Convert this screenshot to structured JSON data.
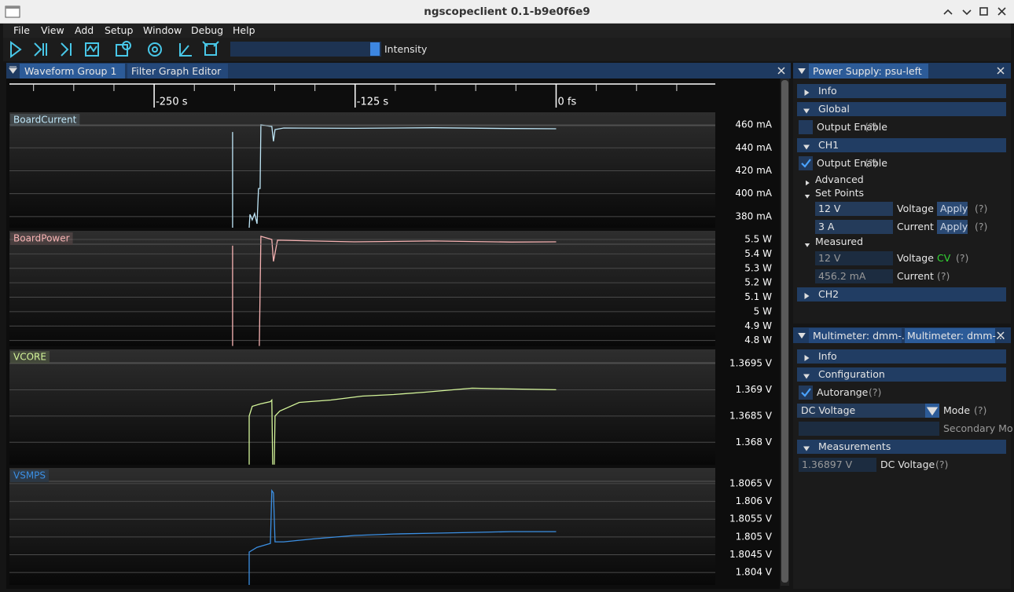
{
  "window": {
    "title": "ngscopeclient 0.1-b9e0f6e9"
  },
  "menu": [
    "File",
    "View",
    "Add",
    "Setup",
    "Window",
    "Debug",
    "Help"
  ],
  "toolbar": {
    "intensity_label": "Intensity"
  },
  "waveform_panel": {
    "tabs": [
      "Waveform Group 1",
      "Filter Graph Editor"
    ]
  },
  "chart_data": {
    "type": "line",
    "xlim": [
      -340,
      99
    ],
    "xticks": [
      {
        "value": -250,
        "label": "-250 s"
      },
      {
        "value": -125,
        "label": "-125 s"
      },
      {
        "value": 0,
        "label": "0 fs"
      }
    ],
    "grid": true,
    "series": [
      {
        "name": "BoardCurrent",
        "color": "#bfe6f7",
        "ylim": [
          370.3,
          471
        ],
        "yticks": [
          {
            "value": 460,
            "label": "460 mA"
          },
          {
            "value": 440,
            "label": "440 mA"
          },
          {
            "value": 420,
            "label": "420 mA"
          },
          {
            "value": 400,
            "label": "400 mA"
          },
          {
            "value": 380,
            "label": "380 mA"
          }
        ],
        "x": [
          -201.2,
          -201.2,
          -201.0,
          -190.9,
          -190.4,
          -189.0,
          -187.5,
          -186.0,
          -185.1,
          -184.1,
          -183.6,
          -176.8,
          -175.8,
          -174.8,
          -169.4,
          -125.5,
          -76.7,
          -27.8,
          0
        ],
        "values": [
          453.8,
          370.3,
          null,
          370.3,
          381.9,
          377.1,
          382.6,
          373.7,
          404.5,
          404.5,
          460,
          458.6,
          445.6,
          455.9,
          457.3,
          457.0,
          457.5,
          456.8,
          456.6
        ]
      },
      {
        "name": "BoardPower",
        "color": "#f7b3b3",
        "ylim": [
          4.76,
          5.56
        ],
        "yticks": [
          {
            "value": 5.5,
            "label": "5.5 W"
          },
          {
            "value": 5.4,
            "label": "5.4 W"
          },
          {
            "value": 5.3,
            "label": "5.3 W"
          },
          {
            "value": 5.2,
            "label": "5.2 W"
          },
          {
            "value": 5.1,
            "label": "5.1 W"
          },
          {
            "value": 5,
            "label": "5 W"
          },
          {
            "value": 4.9,
            "label": "4.9 W"
          },
          {
            "value": 4.8,
            "label": "4.8 W"
          }
        ],
        "x": [
          -201.2,
          -201.2,
          -201.0,
          -184.6,
          -183.6,
          -176.8,
          -175.8,
          -173.3,
          -125.5,
          -76.7,
          -27.8,
          0
        ],
        "values": [
          5.457,
          4.762,
          null,
          4.762,
          5.522,
          5.5,
          5.348,
          5.495,
          5.484,
          5.49,
          5.482,
          5.484
        ]
      },
      {
        "name": "VCORE",
        "color": "#d4f59a",
        "ylim": [
          1.36757,
          1.36977
        ],
        "yticks": [
          {
            "value": 1.3695,
            "label": "1.3695 V"
          },
          {
            "value": 1.369,
            "label": "1.369 V"
          },
          {
            "value": 1.3685,
            "label": "1.3685 V"
          },
          {
            "value": 1.368,
            "label": "1.368 V"
          }
        ],
        "x": [
          -190.9,
          -190.9,
          -189.0,
          -184.1,
          -177.7,
          -176.8,
          -176.3,
          -175.8,
          -175.3,
          -174.8,
          -171.9,
          -159.7,
          -140.1,
          -120.6,
          -101.1,
          -81.5,
          -52.2,
          -27.8,
          0
        ],
        "values": [
          1.367575,
          1.3685,
          1.368685,
          1.36873,
          1.368775,
          1.368805,
          1.367575,
          null,
          1.367575,
          1.3685,
          1.368595,
          1.36876,
          1.368805,
          1.36888,
          1.36891,
          1.368955,
          1.36903,
          1.369015,
          1.369
        ]
      },
      {
        "name": "VSMPS",
        "color": "#3b8fe3",
        "ylim": [
          1.80365,
          1.80694
        ],
        "yticks": [
          {
            "value": 1.8065,
            "label": "1.8065 V"
          },
          {
            "value": 1.806,
            "label": "1.806 V"
          },
          {
            "value": 1.8055,
            "label": "1.8055 V"
          },
          {
            "value": 1.805,
            "label": "1.805 V"
          },
          {
            "value": 1.8045,
            "label": "1.8045 V"
          },
          {
            "value": 1.804,
            "label": "1.804 V"
          }
        ],
        "x": [
          -190.9,
          -190.9,
          -186.0,
          -177.7,
          -176.8,
          -175.8,
          -174.8,
          -169.4,
          -149.9,
          -125.5,
          -101.1,
          -76.7,
          -52.2,
          -27.8,
          0
        ],
        "values": [
          1.80365,
          1.804575,
          1.804708,
          1.804819,
          1.806301,
          1.806235,
          1.804863,
          1.804863,
          1.804951,
          1.80504,
          1.805084,
          1.805106,
          1.805128,
          1.80515,
          1.80515
        ]
      }
    ]
  },
  "power_supply_panel": {
    "tab": "Power Supply: psu-left",
    "info": "Info",
    "global": {
      "header": "Global",
      "output_enable": "Output Enable",
      "help": "(?)"
    },
    "ch1": {
      "header": "CH1",
      "output_enable": "Output Enable",
      "help": "(?)",
      "advanced": "Advanced",
      "set_points": {
        "header": "Set Points",
        "voltage": {
          "value": "12 V",
          "label": "Voltage",
          "button": "Apply",
          "help": "(?)"
        },
        "current": {
          "value": "3 A",
          "label": "Current",
          "button": "Apply",
          "help": "(?)"
        }
      },
      "measured": {
        "header": "Measured",
        "voltage": {
          "value": "12 V",
          "label": "Voltage",
          "mode": "CV",
          "help": "(?)"
        },
        "current": {
          "value": "456.2 mA",
          "label": "Current",
          "help": "(?)"
        }
      }
    },
    "ch2": "CH2"
  },
  "multimeter_panel": {
    "tabs": [
      "Multimeter: dmm-...",
      "Multimeter: dmm-..."
    ],
    "info": "Info",
    "configuration": {
      "header": "Configuration",
      "autorange": "Autorange",
      "autorange_help": "(?)",
      "mode_value": "DC Voltage",
      "mode_label": "Mode",
      "mode_help": "(?)",
      "secondary_mode_label": "Secondary Mo"
    },
    "measurements": {
      "header": "Measurements",
      "value": "1.36897 V",
      "label": "DC Voltage",
      "help": "(?)"
    }
  }
}
